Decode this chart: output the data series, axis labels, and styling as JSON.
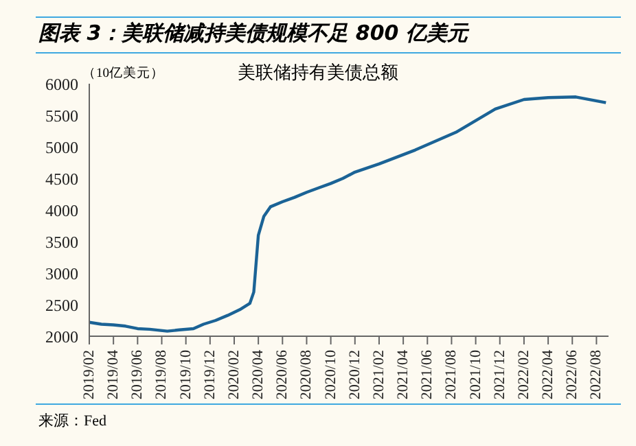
{
  "chart_data": {
    "type": "line",
    "title": "图表 3：美联储减持美债规模不足 800 亿美元",
    "subtitle": "美联储持有美债总额",
    "ylabel": "（10亿美元）",
    "annotations": [
      "来源：Fed"
    ],
    "x": [
      "2019-02-01",
      "2019-03-01",
      "2019-04-01",
      "2019-05-01",
      "2019-06-01",
      "2019-07-01",
      "2019-08-15",
      "2019-09-15",
      "2019-10-20",
      "2019-11-15",
      "2019-12-15",
      "2020-01-15",
      "2020-02-15",
      "2020-03-10",
      "2020-03-20",
      "2020-04-01",
      "2020-04-15",
      "2020-05-01",
      "2020-06-01",
      "2020-07-01",
      "2020-08-01",
      "2020-09-01",
      "2020-10-01",
      "2020-11-01",
      "2020-12-01",
      "2021-02-01",
      "2021-05-01",
      "2021-08-12",
      "2021-11-20",
      "2022-02-01",
      "2022-04-01",
      "2022-06-10",
      "2022-08-25"
    ],
    "series": [
      {
        "color": "#1b6396",
        "values": [
          2220,
          2190,
          2180,
          2160,
          2120,
          2110,
          2080,
          2100,
          2120,
          2190,
          2250,
          2330,
          2420,
          2520,
          2700,
          3600,
          3900,
          4050,
          4130,
          4200,
          4280,
          4350,
          4420,
          4500,
          4600,
          4730,
          4950,
          5230,
          5600,
          5750,
          5780,
          5790,
          5700
        ]
      }
    ],
    "xlim": [
      "2019-02",
      "2022-09"
    ],
    "xticks": [
      {
        "value": "2019-02",
        "label": "2019/02"
      },
      {
        "value": "2019-04",
        "label": "2019/04"
      },
      {
        "value": "2019-06",
        "label": "2019/06"
      },
      {
        "value": "2019-08",
        "label": "2019/08"
      },
      {
        "value": "2019-10",
        "label": "2019/10"
      },
      {
        "value": "2019-12",
        "label": "2019/12"
      },
      {
        "value": "2020-02",
        "label": "2020/02"
      },
      {
        "value": "2020-04",
        "label": "2020/04"
      },
      {
        "value": "2020-06",
        "label": "2020/06"
      },
      {
        "value": "2020-08",
        "label": "2020/08"
      },
      {
        "value": "2020-10",
        "label": "2020/10"
      },
      {
        "value": "2020-12",
        "label": "2020/12"
      },
      {
        "value": "2021-02",
        "label": "2021/02"
      },
      {
        "value": "2021-04",
        "label": "2021/04"
      },
      {
        "value": "2021-06",
        "label": "2021/06"
      },
      {
        "value": "2021-08",
        "label": "2021/08"
      },
      {
        "value": "2021-10",
        "label": "2021/10"
      },
      {
        "value": "2021-12",
        "label": "2021/12"
      },
      {
        "value": "2022-02",
        "label": "2022/02"
      },
      {
        "value": "2022-04",
        "label": "2022/04"
      },
      {
        "value": "2022-06",
        "label": "2022/06"
      },
      {
        "value": "2022-08",
        "label": "2022/08"
      }
    ],
    "ylim": [
      2000,
      6000
    ],
    "yticks": [
      2000,
      2500,
      3000,
      3500,
      4000,
      4500,
      5000,
      5500,
      6000
    ],
    "grid": false,
    "legend": false,
    "marker": "none",
    "line_style": "solid"
  }
}
